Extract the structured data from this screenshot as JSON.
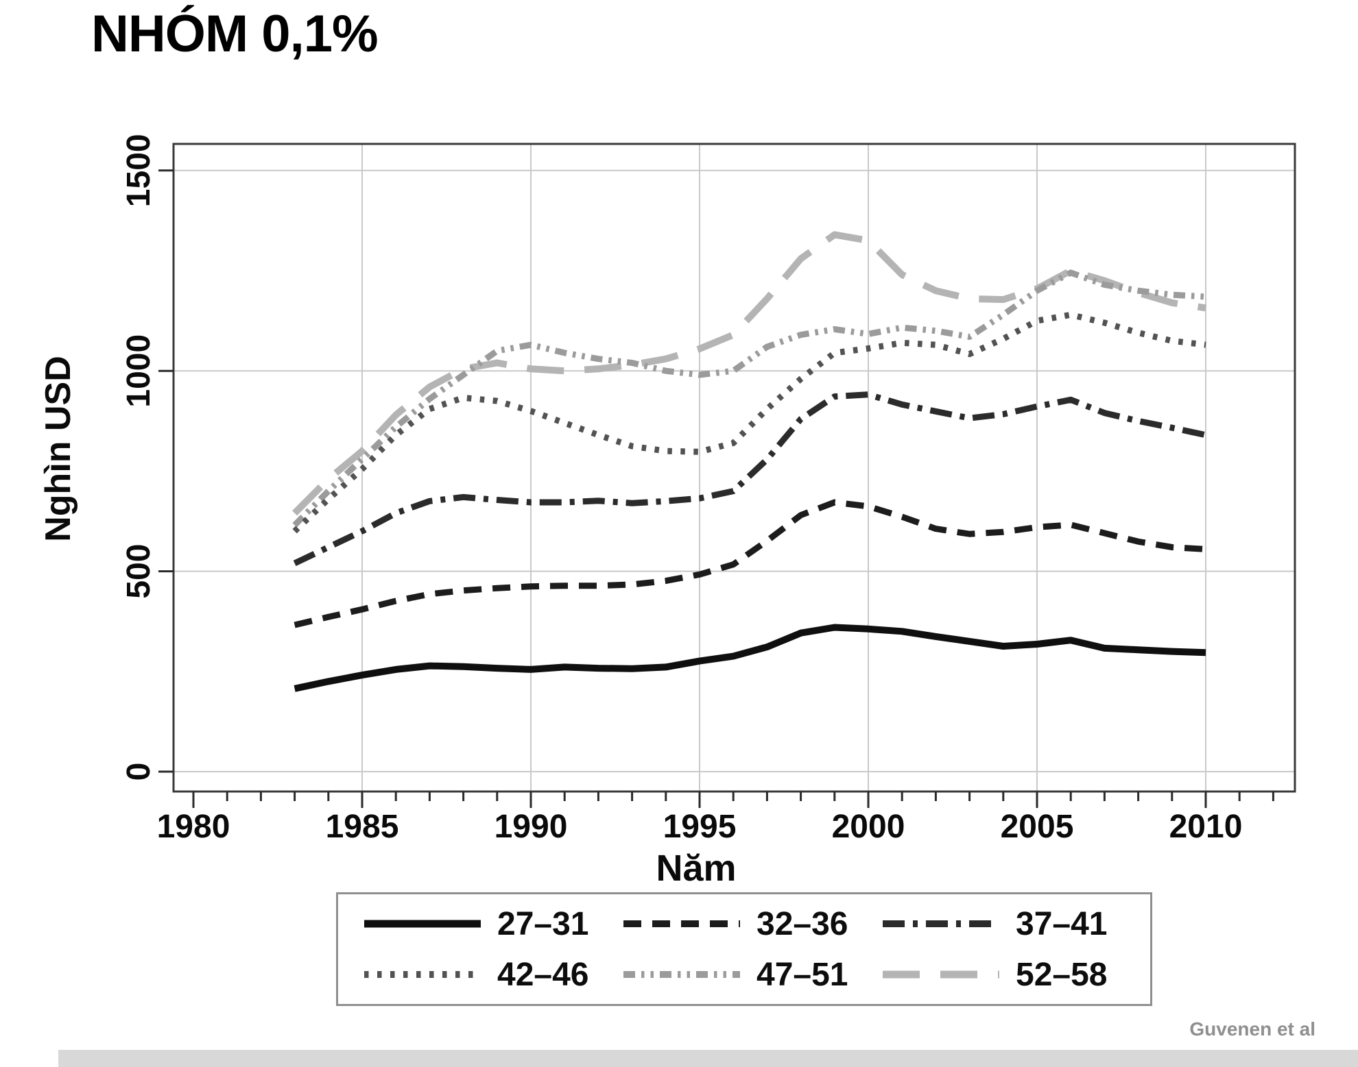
{
  "page": {
    "attribution": "Guvenen et al"
  },
  "chart_data": {
    "type": "line",
    "title": "NHÓM 0,1%",
    "xlabel": "Năm",
    "ylabel": "Nghìn USD",
    "grid": true,
    "legend_position": "bottom",
    "ylim": [
      0,
      1566
    ],
    "xlim": [
      1979.4,
      2012.3
    ],
    "y_ticks": [
      0,
      500,
      1000,
      1500
    ],
    "x_major_ticks": [
      1980,
      1985,
      1990,
      1995,
      2000,
      2005,
      2010
    ],
    "x_minor_tick_range": [
      1980,
      2012
    ],
    "grid_x_years": [
      1985,
      1990,
      1995,
      2000,
      2005,
      2010
    ],
    "years": [
      1983,
      1984,
      1985,
      1986,
      1987,
      1988,
      1989,
      1990,
      1991,
      1992,
      1993,
      1994,
      1995,
      1996,
      1997,
      1998,
      1999,
      2000,
      2001,
      2002,
      2003,
      2004,
      2005,
      2006,
      2007,
      2008,
      2009,
      2010
    ],
    "series": [
      {
        "name": "27–31",
        "style": "solid",
        "color": "#0f0f0f",
        "width": 10,
        "values": [
          207,
          225,
          241,
          255,
          264,
          262,
          258,
          255,
          261,
          258,
          257,
          261,
          276,
          288,
          311,
          346,
          360,
          356,
          350,
          337,
          325,
          313,
          318,
          328,
          308,
          304,
          300,
          297
        ]
      },
      {
        "name": "32–36",
        "style": "dashed",
        "color": "#1c1c1c",
        "width": 9,
        "values": [
          366,
          386,
          405,
          426,
          443,
          452,
          458,
          462,
          464,
          464,
          467,
          476,
          492,
          517,
          576,
          640,
          672,
          662,
          636,
          606,
          593,
          598,
          610,
          616,
          595,
          574,
          560,
          555
        ]
      },
      {
        "name": "37–41",
        "style": "dash-dot",
        "color": "#2b2b2b",
        "width": 9,
        "values": [
          520,
          560,
          600,
          645,
          675,
          685,
          678,
          672,
          672,
          676,
          670,
          675,
          682,
          700,
          779,
          880,
          936,
          941,
          916,
          899,
          882,
          892,
          911,
          928,
          895,
          875,
          858,
          840
        ]
      },
      {
        "name": "42–46",
        "style": "dotted",
        "color": "#525252",
        "width": 9,
        "values": [
          600,
          680,
          755,
          840,
          905,
          933,
          925,
          900,
          870,
          840,
          812,
          800,
          798,
          820,
          905,
          980,
          1045,
          1056,
          1070,
          1065,
          1042,
          1080,
          1125,
          1140,
          1120,
          1095,
          1075,
          1065
        ]
      },
      {
        "name": "47–51",
        "style": "dash-dot-dot",
        "color": "#9b9b9b",
        "width": 9,
        "values": [
          615,
          700,
          780,
          860,
          930,
          990,
          1050,
          1065,
          1045,
          1030,
          1020,
          1000,
          990,
          1000,
          1060,
          1090,
          1104,
          1092,
          1108,
          1100,
          1085,
          1140,
          1200,
          1245,
          1215,
          1200,
          1190,
          1185
        ]
      },
      {
        "name": "52–58",
        "style": "long-dash",
        "color": "#b4b4b4",
        "width": 10,
        "values": [
          645,
          730,
          800,
          890,
          960,
          1005,
          1020,
          1005,
          1000,
          1005,
          1015,
          1030,
          1055,
          1090,
          1180,
          1280,
          1340,
          1325,
          1240,
          1200,
          1180,
          1178,
          1205,
          1250,
          1225,
          1195,
          1170,
          1157
        ]
      }
    ]
  }
}
